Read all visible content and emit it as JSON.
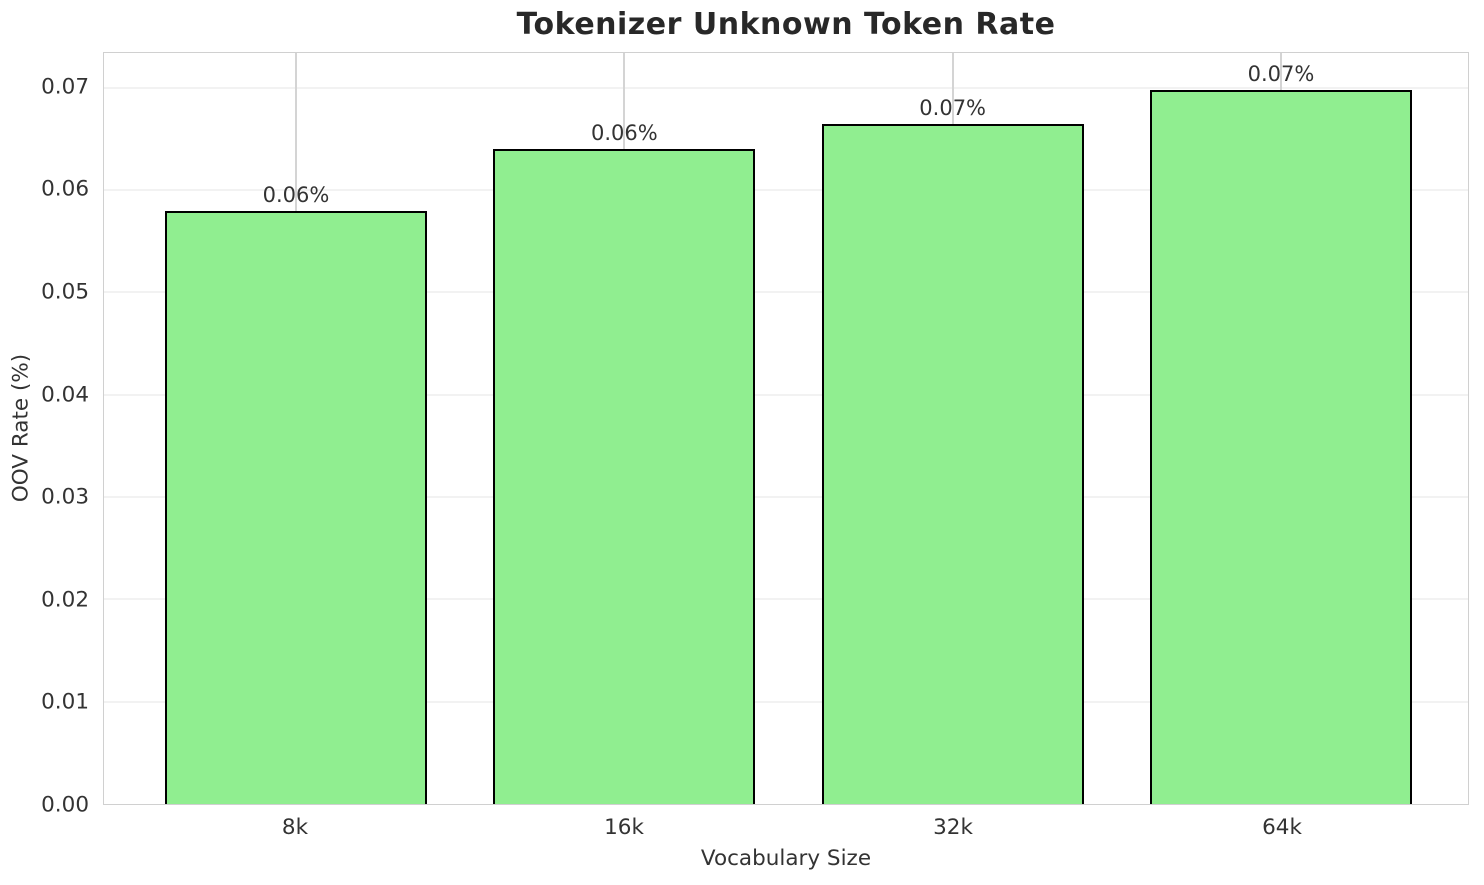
{
  "chart_data": {
    "type": "bar",
    "title": "Tokenizer Unknown Token Rate",
    "xlabel": "Vocabulary Size",
    "ylabel": "OOV Rate (%)",
    "categories": [
      "8k",
      "16k",
      "32k",
      "64k"
    ],
    "values": [
      0.058,
      0.064,
      0.0665,
      0.0698
    ],
    "bar_labels": [
      "0.06%",
      "0.06%",
      "0.07%",
      "0.07%"
    ],
    "yticks": [
      0,
      0.01,
      0.02,
      0.03,
      0.04,
      0.05,
      0.06,
      0.07
    ],
    "ytick_labels": [
      "0.00",
      "0.01",
      "0.02",
      "0.03",
      "0.04",
      "0.05",
      "0.06",
      "0.07"
    ],
    "ylim": [
      0,
      0.0734
    ],
    "grid": true,
    "legend_position": "none",
    "colors": {
      "bar_fill": "#90ee90",
      "bar_edge": "#000000",
      "grid_x": "#d4d4d4",
      "grid_y": "#f2f2f2",
      "spine": "#d0d0d0",
      "text": "#333333",
      "title": "#282828"
    }
  }
}
